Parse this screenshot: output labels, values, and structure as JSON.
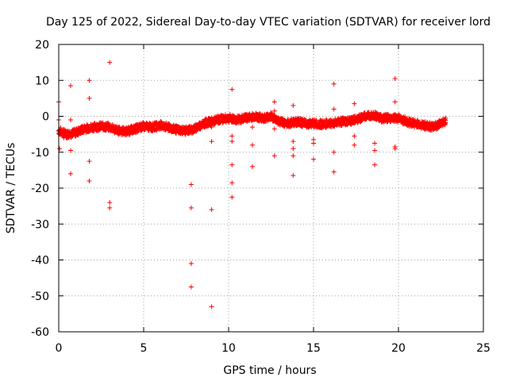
{
  "chart_data": {
    "type": "scatter",
    "title": "Day 125 of 2022, Sidereal Day-to-day VTEC variation (SDTVAR) for receiver lord",
    "xlabel": "GPS time / hours",
    "ylabel": "SDTVAR / TECUs",
    "xlim": [
      0,
      25
    ],
    "ylim": [
      -60,
      20
    ],
    "xticks": [
      0,
      5,
      10,
      15,
      20,
      25
    ],
    "yticks": [
      -60,
      -50,
      -40,
      -30,
      -20,
      -10,
      0,
      10,
      20
    ],
    "grid": true,
    "marker": "+",
    "color": "#ff0000",
    "main_trend": [
      [
        0.0,
        -4.0
      ],
      [
        0.5,
        -5.0
      ],
      [
        1.0,
        -4.5
      ],
      [
        1.5,
        -3.5
      ],
      [
        2.0,
        -3.0
      ],
      [
        2.5,
        -2.8
      ],
      [
        3.0,
        -3.0
      ],
      [
        3.5,
        -4.0
      ],
      [
        4.0,
        -4.2
      ],
      [
        4.5,
        -3.5
      ],
      [
        5.0,
        -2.8
      ],
      [
        5.5,
        -3.0
      ],
      [
        6.0,
        -2.5
      ],
      [
        6.5,
        -3.2
      ],
      [
        7.0,
        -3.8
      ],
      [
        7.5,
        -4.0
      ],
      [
        8.0,
        -3.5
      ],
      [
        8.5,
        -2.0
      ],
      [
        9.0,
        -1.5
      ],
      [
        9.5,
        -0.8
      ],
      [
        10.0,
        -0.5
      ],
      [
        10.5,
        -1.0
      ],
      [
        11.0,
        -0.5
      ],
      [
        11.5,
        0.0
      ],
      [
        12.0,
        -0.5
      ],
      [
        12.5,
        0.0
      ],
      [
        13.0,
        -1.5
      ],
      [
        13.5,
        -2.0
      ],
      [
        14.0,
        -1.5
      ],
      [
        14.5,
        -2.0
      ],
      [
        15.0,
        -2.0
      ],
      [
        15.5,
        -2.2
      ],
      [
        16.0,
        -2.0
      ],
      [
        16.5,
        -1.5
      ],
      [
        17.0,
        -1.5
      ],
      [
        17.5,
        -1.0
      ],
      [
        18.0,
        0.0
      ],
      [
        18.5,
        0.5
      ],
      [
        19.0,
        -0.5
      ],
      [
        19.5,
        -0.5
      ],
      [
        20.0,
        -0.5
      ],
      [
        20.5,
        -1.5
      ],
      [
        21.0,
        -2.0
      ],
      [
        21.5,
        -2.5
      ],
      [
        22.0,
        -3.0
      ],
      [
        22.5,
        -2.0
      ],
      [
        22.8,
        -1.5
      ]
    ],
    "outliers": [
      [
        0.0,
        4
      ],
      [
        0.0,
        -1
      ],
      [
        0.05,
        -9
      ],
      [
        0.3,
        -6
      ],
      [
        0.7,
        8.5
      ],
      [
        0.7,
        -1
      ],
      [
        0.7,
        -9.5
      ],
      [
        0.7,
        -16
      ],
      [
        1.8,
        10
      ],
      [
        1.8,
        5
      ],
      [
        1.8,
        -12.5
      ],
      [
        1.8,
        -18
      ],
      [
        3.0,
        15
      ],
      [
        3.0,
        -24
      ],
      [
        3.0,
        -25.5
      ],
      [
        7.8,
        -19
      ],
      [
        7.8,
        -25.5
      ],
      [
        7.8,
        -41
      ],
      [
        7.8,
        -47.5
      ],
      [
        9.0,
        -3
      ],
      [
        9.0,
        -7
      ],
      [
        9.0,
        -26
      ],
      [
        9.0,
        -53
      ],
      [
        10.2,
        7.5
      ],
      [
        10.2,
        -5.5
      ],
      [
        10.2,
        -7
      ],
      [
        10.2,
        -13.5
      ],
      [
        10.2,
        -18.5
      ],
      [
        10.2,
        -22.5
      ],
      [
        11.4,
        -3
      ],
      [
        11.4,
        -8
      ],
      [
        11.4,
        -14
      ],
      [
        12.7,
        4
      ],
      [
        12.7,
        1.5
      ],
      [
        12.7,
        -3.5
      ],
      [
        12.7,
        -11
      ],
      [
        13.8,
        3
      ],
      [
        13.8,
        -7
      ],
      [
        13.8,
        -9
      ],
      [
        13.8,
        -11
      ],
      [
        13.8,
        -16.5
      ],
      [
        15.0,
        -6.5
      ],
      [
        15.0,
        -7.5
      ],
      [
        15.0,
        -12
      ],
      [
        16.2,
        9
      ],
      [
        16.2,
        2
      ],
      [
        16.2,
        -10
      ],
      [
        16.2,
        -15.5
      ],
      [
        17.4,
        3.5
      ],
      [
        17.4,
        -5.5
      ],
      [
        17.4,
        -8
      ],
      [
        18.6,
        -7.5
      ],
      [
        18.6,
        -9.5
      ],
      [
        18.6,
        -13.5
      ],
      [
        19.8,
        10.5
      ],
      [
        19.8,
        4
      ],
      [
        19.8,
        -8.5
      ],
      [
        19.8,
        -9
      ]
    ]
  }
}
